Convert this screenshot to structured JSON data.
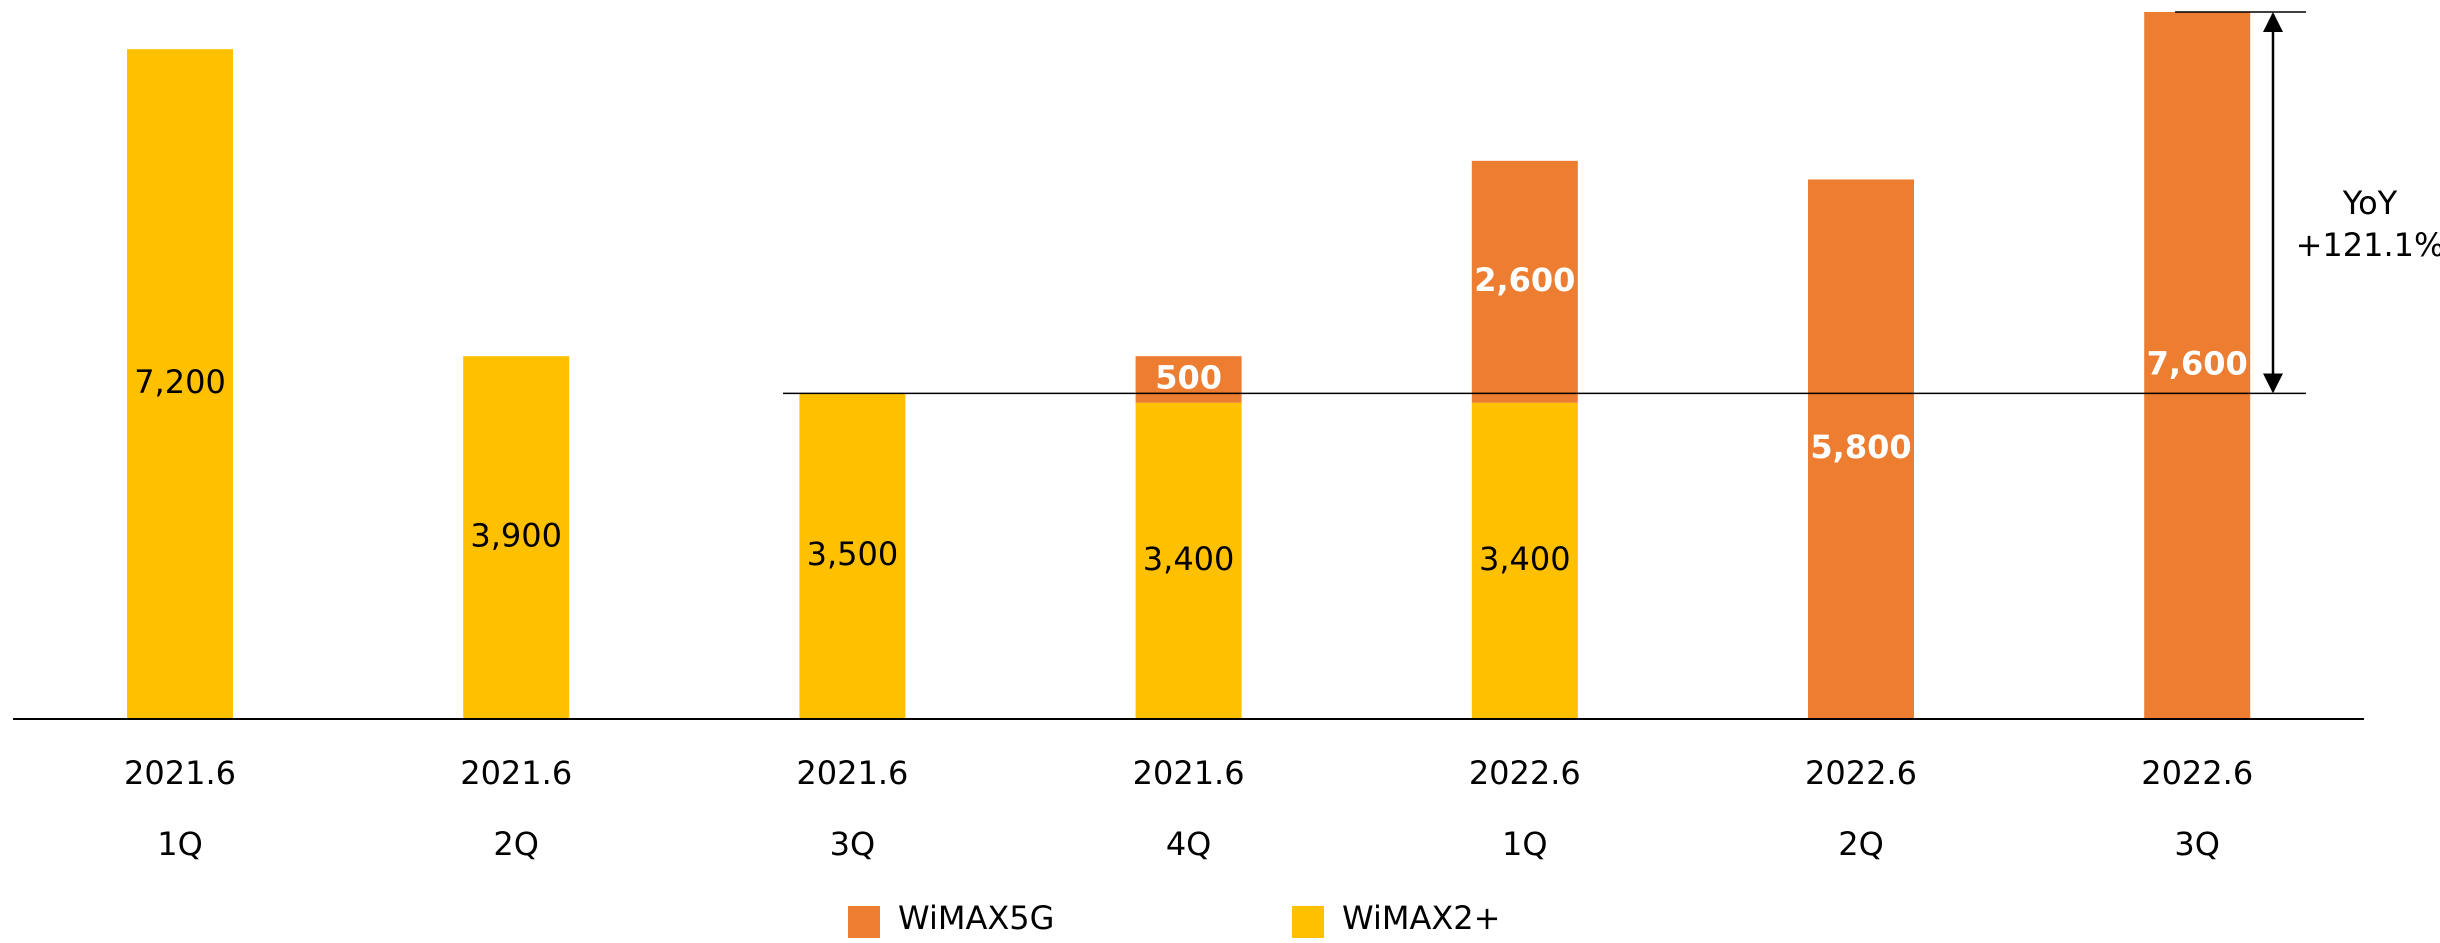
{
  "chart_data": {
    "type": "stacked_bar",
    "categories": [
      [
        "2021.6",
        "1Q"
      ],
      [
        "2021.6",
        "2Q"
      ],
      [
        "2021.6",
        "3Q"
      ],
      [
        "2021.6",
        "4Q"
      ],
      [
        "2022.6",
        "1Q"
      ],
      [
        "2022.6",
        "2Q"
      ],
      [
        "2022.6",
        "3Q"
      ]
    ],
    "series": [
      {
        "name": "WiMAX2+",
        "color": "#FFC000",
        "values": [
          7200,
          3900,
          3500,
          3400,
          3400,
          null,
          null
        ],
        "value_labels": [
          "7,200",
          "3,900",
          "3,500",
          "3,400",
          "3,400",
          null,
          null
        ]
      },
      {
        "name": "WiMAX5G",
        "color": "#ED7D31",
        "values": [
          null,
          null,
          null,
          500,
          2600,
          5800,
          7600
        ],
        "value_labels": [
          null,
          null,
          null,
          "500",
          "2,600",
          "5,800",
          "7,600"
        ]
      }
    ],
    "ylim": [
      0,
      7600
    ],
    "annotations": [
      "YoY",
      "+121.1%"
    ]
  }
}
